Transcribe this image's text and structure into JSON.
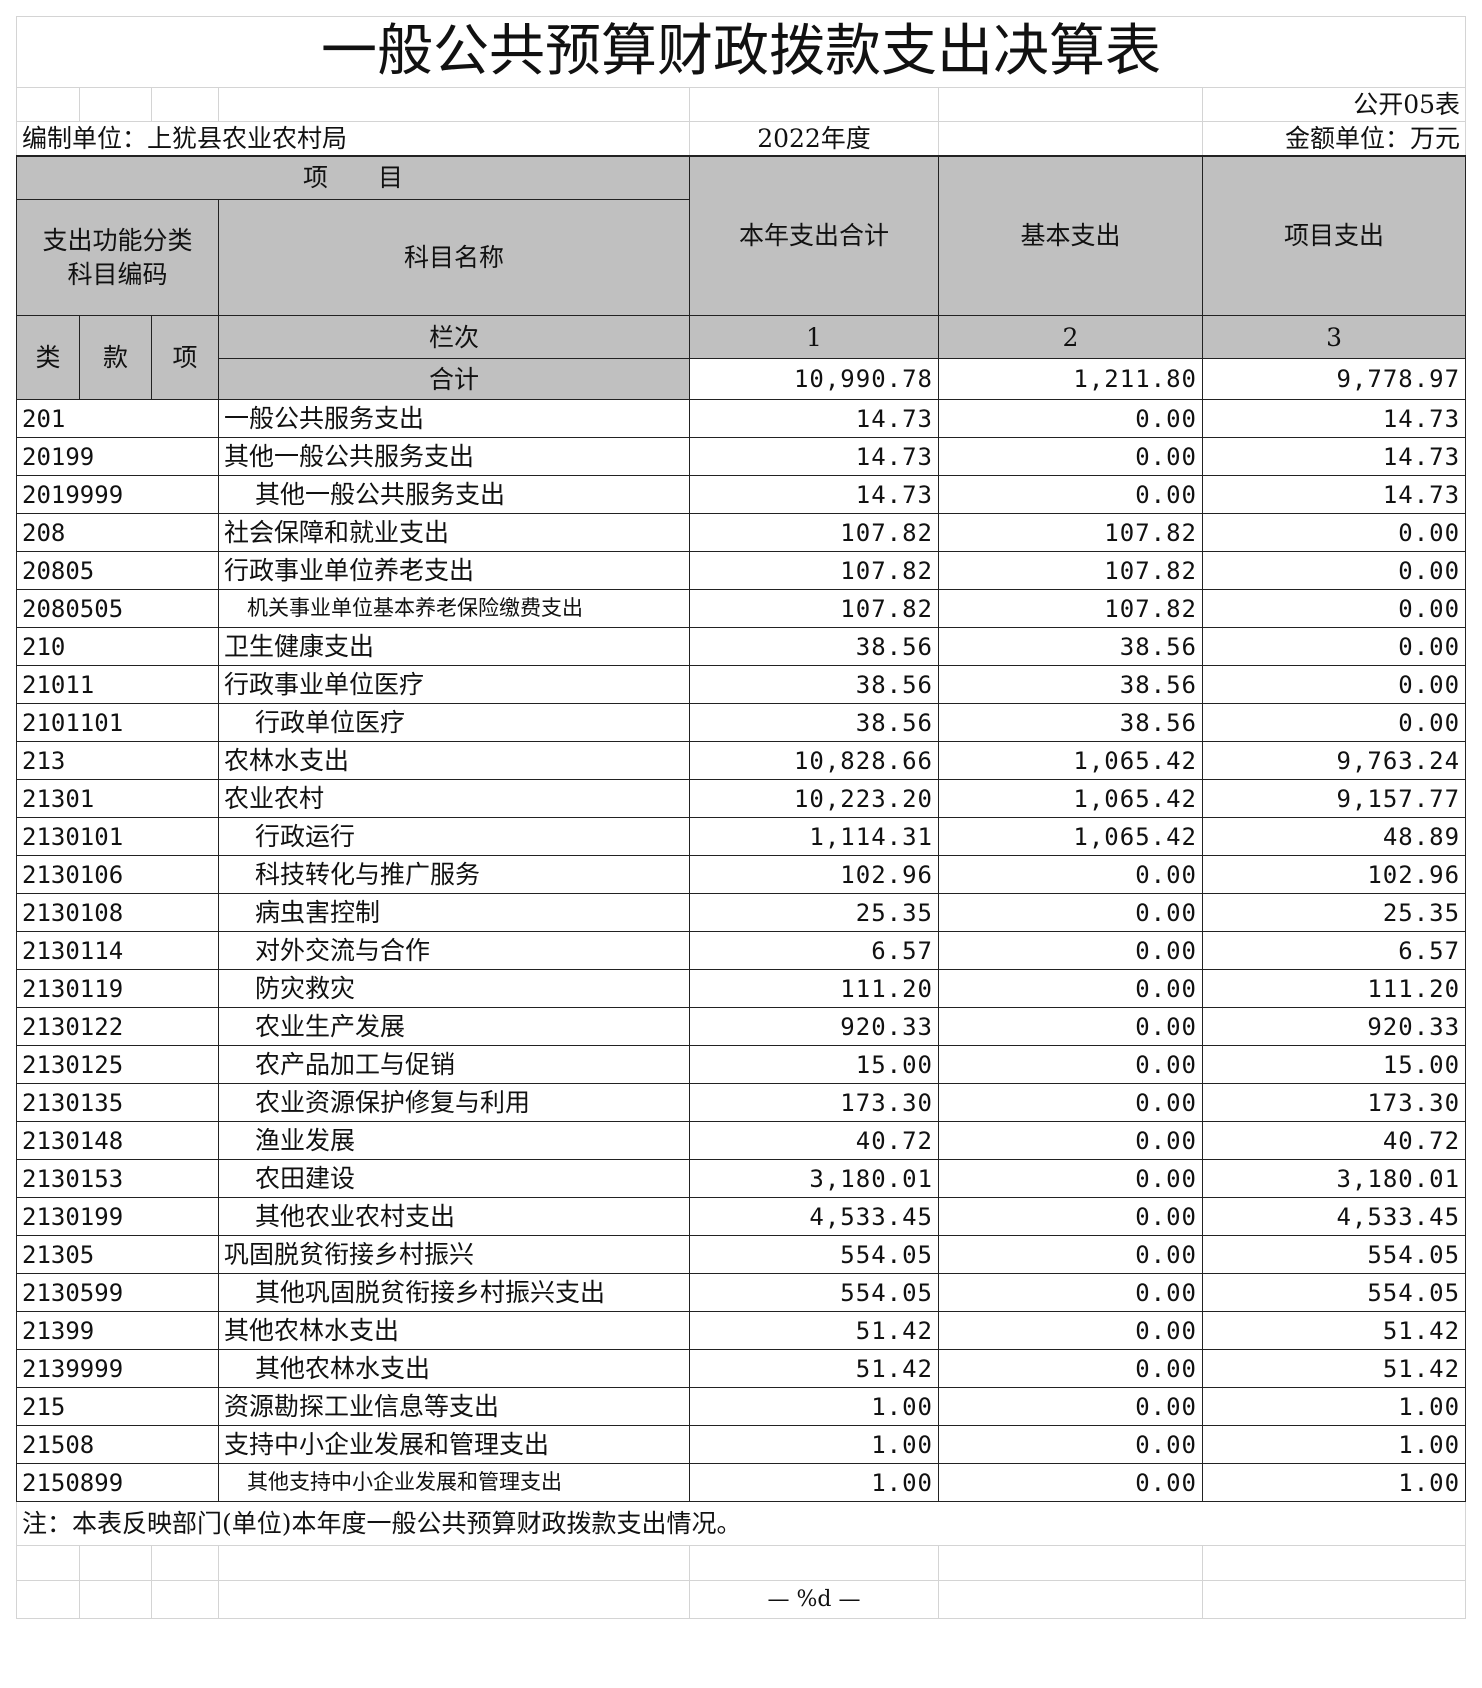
{
  "title": "一般公共预算财政拨款支出决算表",
  "table_no": "公开05表",
  "unit_label": "编制单位：上犹县农业农村局",
  "year": "2022年度",
  "currency": "金额单位：万元",
  "header": {
    "item": "项　　目",
    "code_col": "支出功能分类\n科目编码",
    "name_col": "科目名称",
    "total_col": "本年支出合计",
    "basic_col": "基本支出",
    "project_col": "项目支出",
    "lei": "类",
    "kuan": "款",
    "xiang": "项",
    "lanci": "栏次",
    "n1": "1",
    "n2": "2",
    "n3": "3",
    "sum_label": "合计",
    "sum_total": "10,990.78",
    "sum_basic": "1,211.80",
    "sum_project": "9,778.97"
  },
  "rows": [
    {
      "code": "201",
      "name": "一般公共服务支出",
      "total": "14.73",
      "basic": "0.00",
      "project": "14.73"
    },
    {
      "code": "20199",
      "name": "其他一般公共服务支出",
      "total": "14.73",
      "basic": "0.00",
      "project": "14.73"
    },
    {
      "code": "2019999",
      "name": "其他一般公共服务支出",
      "total": "14.73",
      "basic": "0.00",
      "project": "14.73"
    },
    {
      "code": "208",
      "name": "社会保障和就业支出",
      "total": "107.82",
      "basic": "107.82",
      "project": "0.00"
    },
    {
      "code": "20805",
      "name": "行政事业单位养老支出",
      "total": "107.82",
      "basic": "107.82",
      "project": "0.00"
    },
    {
      "code": "2080505",
      "name": "机关事业单位基本养老保险缴费支出",
      "total": "107.82",
      "basic": "107.82",
      "project": "0.00"
    },
    {
      "code": "210",
      "name": "卫生健康支出",
      "total": "38.56",
      "basic": "38.56",
      "project": "0.00"
    },
    {
      "code": "21011",
      "name": "行政事业单位医疗",
      "total": "38.56",
      "basic": "38.56",
      "project": "0.00"
    },
    {
      "code": "2101101",
      "name": "行政单位医疗",
      "total": "38.56",
      "basic": "38.56",
      "project": "0.00"
    },
    {
      "code": "213",
      "name": "农林水支出",
      "total": "10,828.66",
      "basic": "1,065.42",
      "project": "9,763.24"
    },
    {
      "code": "21301",
      "name": "农业农村",
      "total": "10,223.20",
      "basic": "1,065.42",
      "project": "9,157.77"
    },
    {
      "code": "2130101",
      "name": "行政运行",
      "total": "1,114.31",
      "basic": "1,065.42",
      "project": "48.89"
    },
    {
      "code": "2130106",
      "name": "科技转化与推广服务",
      "total": "102.96",
      "basic": "0.00",
      "project": "102.96"
    },
    {
      "code": "2130108",
      "name": "病虫害控制",
      "total": "25.35",
      "basic": "0.00",
      "project": "25.35"
    },
    {
      "code": "2130114",
      "name": "对外交流与合作",
      "total": "6.57",
      "basic": "0.00",
      "project": "6.57"
    },
    {
      "code": "2130119",
      "name": "防灾救灾",
      "total": "111.20",
      "basic": "0.00",
      "project": "111.20"
    },
    {
      "code": "2130122",
      "name": "农业生产发展",
      "total": "920.33",
      "basic": "0.00",
      "project": "920.33"
    },
    {
      "code": "2130125",
      "name": "农产品加工与促销",
      "total": "15.00",
      "basic": "0.00",
      "project": "15.00"
    },
    {
      "code": "2130135",
      "name": "农业资源保护修复与利用",
      "total": "173.30",
      "basic": "0.00",
      "project": "173.30"
    },
    {
      "code": "2130148",
      "name": "渔业发展",
      "total": "40.72",
      "basic": "0.00",
      "project": "40.72"
    },
    {
      "code": "2130153",
      "name": "农田建设",
      "total": "3,180.01",
      "basic": "0.00",
      "project": "3,180.01"
    },
    {
      "code": "2130199",
      "name": "其他农业农村支出",
      "total": "4,533.45",
      "basic": "0.00",
      "project": "4,533.45"
    },
    {
      "code": "21305",
      "name": "巩固脱贫衔接乡村振兴",
      "total": "554.05",
      "basic": "0.00",
      "project": "554.05"
    },
    {
      "code": "2130599",
      "name": "其他巩固脱贫衔接乡村振兴支出",
      "total": "554.05",
      "basic": "0.00",
      "project": "554.05"
    },
    {
      "code": "21399",
      "name": "其他农林水支出",
      "total": "51.42",
      "basic": "0.00",
      "project": "51.42"
    },
    {
      "code": "2139999",
      "name": "其他农林水支出",
      "total": "51.42",
      "basic": "0.00",
      "project": "51.42"
    },
    {
      "code": "215",
      "name": "资源勘探工业信息等支出",
      "total": "1.00",
      "basic": "0.00",
      "project": "1.00"
    },
    {
      "code": "21508",
      "name": "支持中小企业发展和管理支出",
      "total": "1.00",
      "basic": "0.00",
      "project": "1.00"
    },
    {
      "code": "2150899",
      "name": "其他支持中小企业发展和管理支出",
      "total": "1.00",
      "basic": "0.00",
      "project": "1.00"
    }
  ],
  "note": "注：本表反映部门(单位)本年度一般公共预算财政拨款支出情况。",
  "page_footer": "— %d —"
}
